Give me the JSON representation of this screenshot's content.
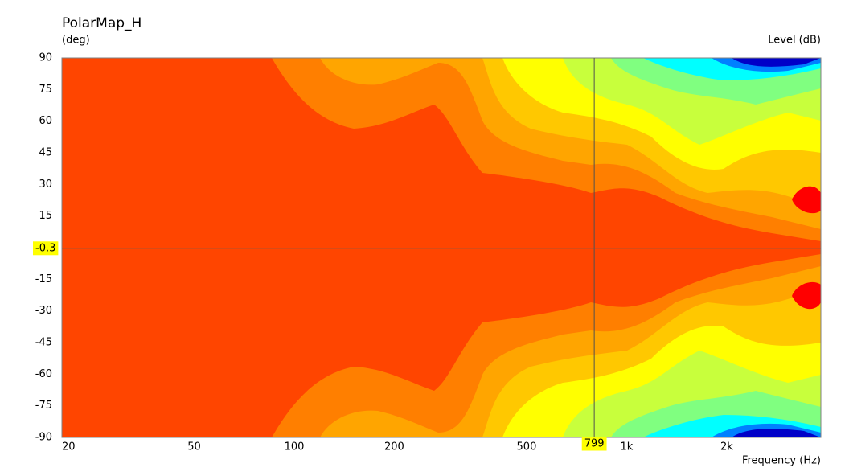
{
  "chart_data": {
    "type": "contour",
    "title": "PolarMap_H",
    "y_label": "(deg)",
    "level_label": "Level  (dB)",
    "x_label": "Frequency  (Hz)",
    "x_log": true,
    "xlim": [
      20,
      3840
    ],
    "xticks": [
      20,
      50,
      100,
      200,
      500,
      {
        "value": 1000,
        "label": "1k"
      },
      {
        "value": 2000,
        "label": "2k"
      }
    ],
    "ylim": [
      -90,
      90
    ],
    "yticks": [
      90,
      75,
      60,
      45,
      30,
      15,
      -15,
      -30,
      -45,
      -60,
      -75,
      -90
    ],
    "cursor": {
      "x": 799,
      "y": -0.3
    }
  }
}
